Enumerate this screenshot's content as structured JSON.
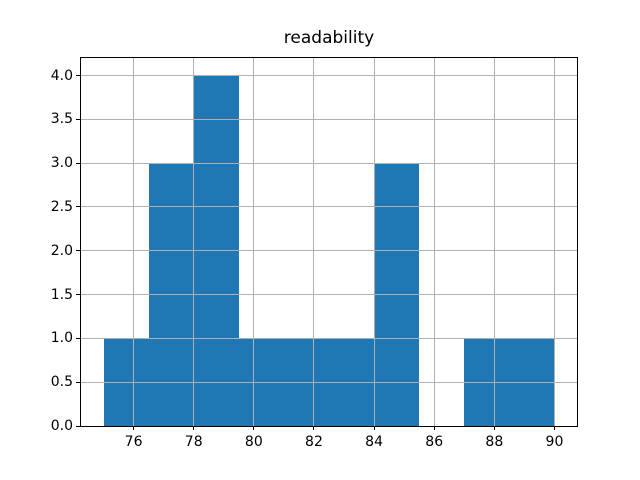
{
  "chart_data": {
    "type": "histogram",
    "title": "readability",
    "xlabel": "",
    "ylabel": "",
    "bin_edges": [
      75,
      76.5,
      78,
      79.5,
      81,
      82.5,
      84,
      85.5,
      87,
      88.5,
      90
    ],
    "counts": [
      1,
      3,
      4,
      1,
      1,
      1,
      3,
      0,
      1,
      1
    ],
    "xlim": [
      74.25,
      90.75
    ],
    "ylim": [
      0,
      4.2
    ],
    "xticks": [
      76,
      78,
      80,
      82,
      84,
      86,
      88,
      90
    ],
    "xtick_labels": [
      "76",
      "78",
      "80",
      "82",
      "84",
      "86",
      "88",
      "90"
    ],
    "yticks": [
      0,
      0.5,
      1,
      1.5,
      2,
      2.5,
      3,
      3.5,
      4
    ],
    "ytick_labels": [
      "0.0",
      "0.5",
      "1.0",
      "1.5",
      "2.0",
      "2.5",
      "3.0",
      "3.5",
      "4.0"
    ],
    "grid": true,
    "grid_on_top": true,
    "legend": null,
    "colors": {
      "bar": "#1f77b4",
      "grid": "#b0b0b0",
      "axis": "#000000",
      "background": "#ffffff",
      "text": "#000000"
    }
  }
}
